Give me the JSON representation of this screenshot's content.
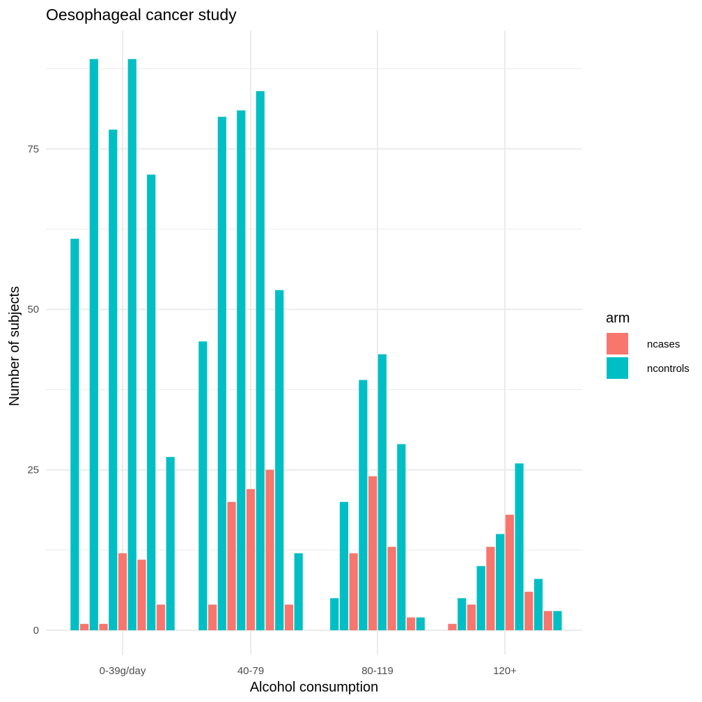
{
  "chart_data": {
    "type": "bar",
    "title": "Oesophageal cancer study",
    "xlabel": "Alcohol consumption",
    "ylabel": "Number of subjects",
    "ylim": [
      -2.5,
      94
    ],
    "yticks": [
      0,
      25,
      50,
      75
    ],
    "grid": true,
    "legend": {
      "title": "arm",
      "placement": "right",
      "entries": [
        {
          "name": "ncases",
          "color": "#F8766D"
        },
        {
          "name": "ncontrols",
          "color": "#00BFC4"
        }
      ]
    },
    "categories": [
      "0-39g/day",
      "40-79",
      "80-119",
      "120+"
    ],
    "bars": [
      {
        "category": "0-39g/day",
        "arm": "ncontrols",
        "value": 61
      },
      {
        "category": "0-39g/day",
        "arm": "ncases",
        "value": 1
      },
      {
        "category": "0-39g/day",
        "arm": "ncontrols",
        "value": 89
      },
      {
        "category": "0-39g/day",
        "arm": "ncases",
        "value": 1
      },
      {
        "category": "0-39g/day",
        "arm": "ncontrols",
        "value": 78
      },
      {
        "category": "0-39g/day",
        "arm": "ncases",
        "value": 12
      },
      {
        "category": "0-39g/day",
        "arm": "ncontrols",
        "value": 89
      },
      {
        "category": "0-39g/day",
        "arm": "ncases",
        "value": 11
      },
      {
        "category": "0-39g/day",
        "arm": "ncontrols",
        "value": 71
      },
      {
        "category": "0-39g/day",
        "arm": "ncases",
        "value": 4
      },
      {
        "category": "0-39g/day",
        "arm": "ncontrols",
        "value": 27
      },
      {
        "category": "40-79",
        "arm": "ncontrols",
        "value": 45
      },
      {
        "category": "40-79",
        "arm": "ncases",
        "value": 4
      },
      {
        "category": "40-79",
        "arm": "ncontrols",
        "value": 80
      },
      {
        "category": "40-79",
        "arm": "ncases",
        "value": 20
      },
      {
        "category": "40-79",
        "arm": "ncontrols",
        "value": 81
      },
      {
        "category": "40-79",
        "arm": "ncases",
        "value": 22
      },
      {
        "category": "40-79",
        "arm": "ncontrols",
        "value": 84
      },
      {
        "category": "40-79",
        "arm": "ncases",
        "value": 25
      },
      {
        "category": "40-79",
        "arm": "ncontrols",
        "value": 53
      },
      {
        "category": "40-79",
        "arm": "ncases",
        "value": 4
      },
      {
        "category": "40-79",
        "arm": "ncontrols",
        "value": 12
      },
      {
        "category": "80-119",
        "arm": "ncontrols",
        "value": 5
      },
      {
        "category": "80-119",
        "arm": "ncontrols",
        "value": 20
      },
      {
        "category": "80-119",
        "arm": "ncases",
        "value": 12
      },
      {
        "category": "80-119",
        "arm": "ncontrols",
        "value": 39
      },
      {
        "category": "80-119",
        "arm": "ncases",
        "value": 24
      },
      {
        "category": "80-119",
        "arm": "ncontrols",
        "value": 43
      },
      {
        "category": "80-119",
        "arm": "ncases",
        "value": 13
      },
      {
        "category": "80-119",
        "arm": "ncontrols",
        "value": 29
      },
      {
        "category": "80-119",
        "arm": "ncases",
        "value": 2
      },
      {
        "category": "80-119",
        "arm": "ncontrols",
        "value": 2
      },
      {
        "category": "120+",
        "arm": "ncases",
        "value": 1
      },
      {
        "category": "120+",
        "arm": "ncontrols",
        "value": 5
      },
      {
        "category": "120+",
        "arm": "ncases",
        "value": 4
      },
      {
        "category": "120+",
        "arm": "ncontrols",
        "value": 10
      },
      {
        "category": "120+",
        "arm": "ncases",
        "value": 13
      },
      {
        "category": "120+",
        "arm": "ncontrols",
        "value": 15
      },
      {
        "category": "120+",
        "arm": "ncases",
        "value": 18
      },
      {
        "category": "120+",
        "arm": "ncontrols",
        "value": 26
      },
      {
        "category": "120+",
        "arm": "ncases",
        "value": 6
      },
      {
        "category": "120+",
        "arm": "ncontrols",
        "value": 8
      },
      {
        "category": "120+",
        "arm": "ncases",
        "value": 3
      },
      {
        "category": "120+",
        "arm": "ncontrols",
        "value": 3
      }
    ]
  }
}
